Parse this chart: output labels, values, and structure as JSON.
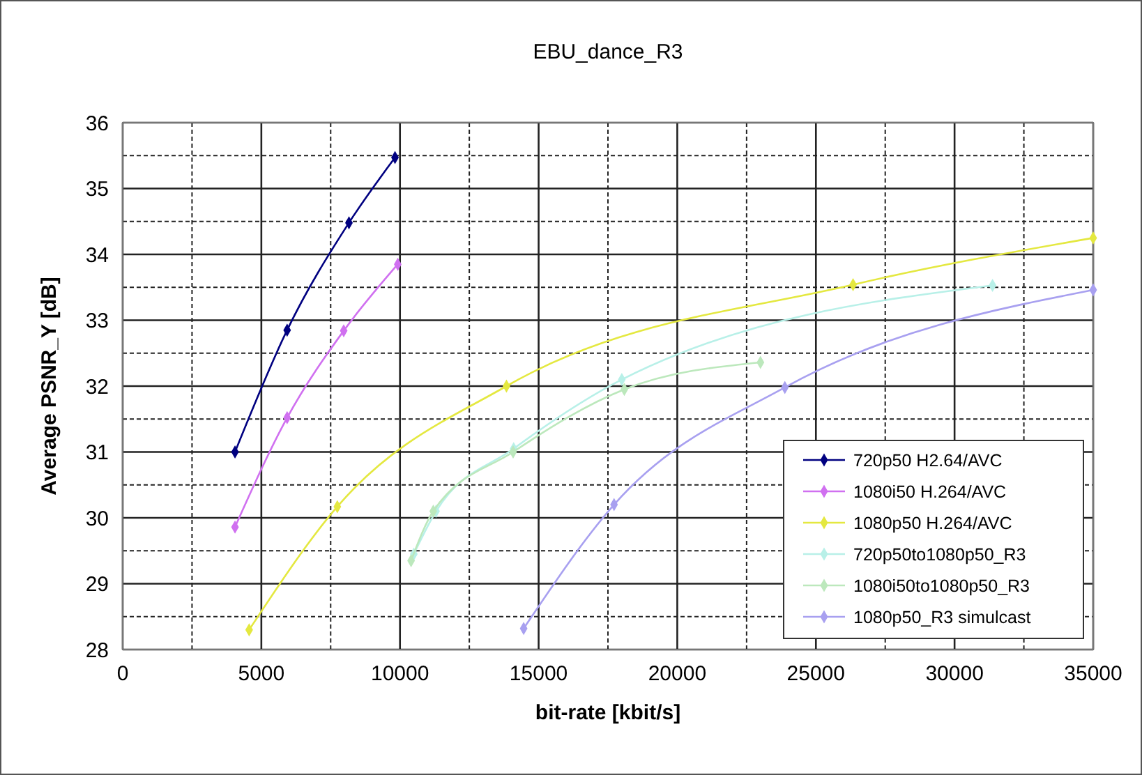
{
  "chart_data": {
    "type": "line",
    "title": "EBU_dance_R3",
    "xlabel": "bit-rate [kbit/s]",
    "ylabel": "Average PSNR_Y [dB]",
    "xlim": [
      0,
      35000
    ],
    "xticks": [
      0,
      5000,
      10000,
      15000,
      20000,
      25000,
      30000,
      35000
    ],
    "ylim": [
      28,
      36
    ],
    "yticks": [
      28,
      29,
      30,
      31,
      32,
      33,
      34,
      35,
      36
    ],
    "grid": true,
    "legend": "bottom right",
    "marker": "diamond",
    "line_style": "solid",
    "series": [
      {
        "name": "720p50 H2.64/AVC",
        "color": "#000080",
        "x": [
          4050,
          5930,
          8160,
          9820
        ],
        "values": [
          31.0,
          32.85,
          34.48,
          35.47
        ]
      },
      {
        "name": "1080i50 H.264/AVC",
        "color": "#d070f0",
        "x": [
          4050,
          5930,
          7970,
          9920
        ],
        "values": [
          29.86,
          31.52,
          32.84,
          33.85
        ]
      },
      {
        "name": "1080p50 H.264/AVC",
        "color": "#e4e840",
        "x": [
          4560,
          7740,
          13840,
          26340,
          35000
        ],
        "values": [
          28.3,
          30.17,
          32.0,
          33.54,
          34.25
        ]
      },
      {
        "name": "720p50to1080p50_R3",
        "color": "#b8f0e8",
        "x": [
          10500,
          11300,
          14100,
          18000,
          31370
        ],
        "values": [
          29.45,
          30.1,
          31.05,
          32.1,
          33.53
        ]
      },
      {
        "name": "1080i50to1080p50_R3",
        "color": "#bce8bc",
        "x": [
          10400,
          11200,
          14080,
          18090,
          23000
        ],
        "values": [
          29.35,
          30.1,
          31.0,
          31.95,
          32.36
        ]
      },
      {
        "name": "1080p50_R3 simulcast",
        "color": "#a8a0f0",
        "x": [
          14460,
          17720,
          23880,
          35000
        ],
        "values": [
          28.32,
          30.2,
          31.98,
          33.46
        ]
      }
    ]
  }
}
